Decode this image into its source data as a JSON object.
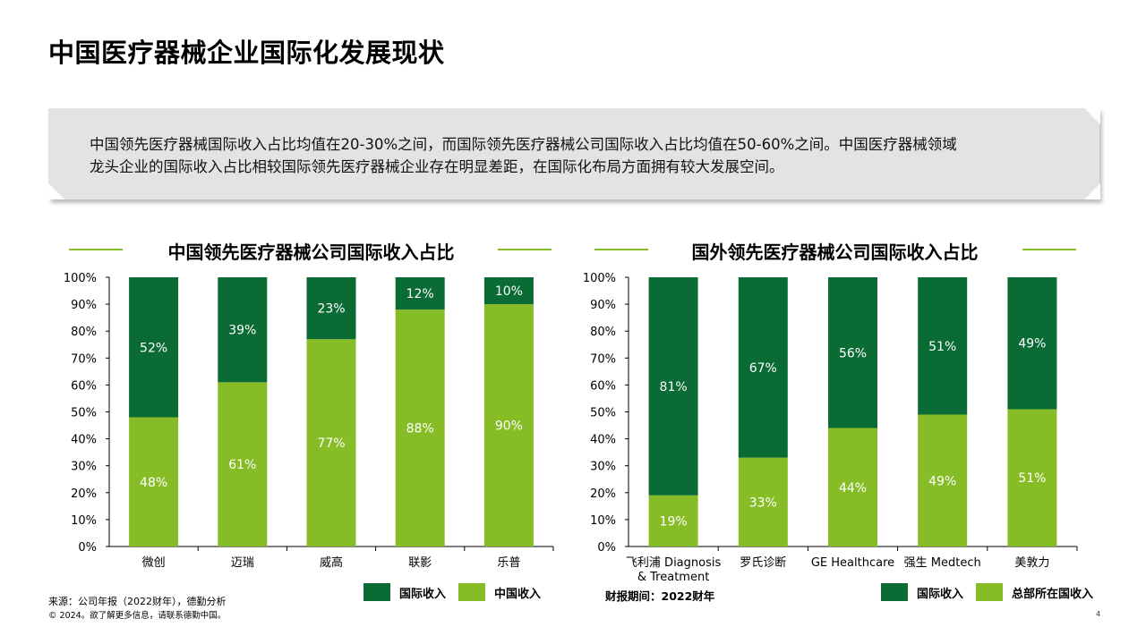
{
  "page_title": "中国医疗器械企业国际化发展现状",
  "summary_line1": "中国领先医疗器械国际收入占比均值在20-30%之间，而国际领先医疗器械公司国际收入占比均值在50-60%之间。中国医疗器械领域",
  "summary_line2": "龙头企业的国际收入占比相较国际领先医疗器械企业存在明显差距，在国际化布局方面拥有较大发展空间。",
  "colors": {
    "international": "#0a6b35",
    "domestic": "#86bc25",
    "accent_line": "#86bc25"
  },
  "chart_data": [
    {
      "type": "bar",
      "stacked": true,
      "title": "中国领先医疗器械公司国际收入占比",
      "categories": [
        "微创",
        "迈瑞",
        "威高",
        "联影",
        "乐普"
      ],
      "series": [
        {
          "name": "中国收入",
          "values": [
            48,
            61,
            77,
            88,
            90
          ]
        },
        {
          "name": "国际收入",
          "values": [
            52,
            39,
            23,
            12,
            10
          ]
        }
      ],
      "ylim": [
        0,
        100
      ],
      "yticks": [
        "0%",
        "10%",
        "20%",
        "30%",
        "40%",
        "50%",
        "60%",
        "70%",
        "80%",
        "90%",
        "100%"
      ],
      "legend": [
        "国际收入",
        "中国收入"
      ]
    },
    {
      "type": "bar",
      "stacked": true,
      "title": "国外领先医疗器械公司国际收入占比",
      "categories": [
        "飞利浦 Diagnosis & Treatment",
        "罗氏诊断",
        "GE Healthcare",
        "强生 Medtech",
        "美敦力"
      ],
      "category_lines": [
        [
          "飞利浦 Diagnosis",
          "& Treatment"
        ],
        [
          "罗氏诊断"
        ],
        [
          "GE Healthcare"
        ],
        [
          "强生 Medtech"
        ],
        [
          "美敦力"
        ]
      ],
      "series": [
        {
          "name": "总部所在国收入",
          "values": [
            19,
            33,
            44,
            49,
            51
          ]
        },
        {
          "name": "国际收入",
          "values": [
            81,
            67,
            56,
            51,
            49
          ]
        }
      ],
      "ylim": [
        0,
        100
      ],
      "yticks": [
        "0%",
        "10%",
        "20%",
        "30%",
        "40%",
        "50%",
        "60%",
        "70%",
        "80%",
        "90%",
        "100%"
      ],
      "legend": [
        "国际收入",
        "总部所在国收入"
      ]
    }
  ],
  "footnote_source": "来源：公司年报（2022财年），德勤分析",
  "footnote_copyright": "© 2024。欲了解更多信息，请联系德勤中国。",
  "report_period": "财报期间：2022财年",
  "page_number": "4"
}
